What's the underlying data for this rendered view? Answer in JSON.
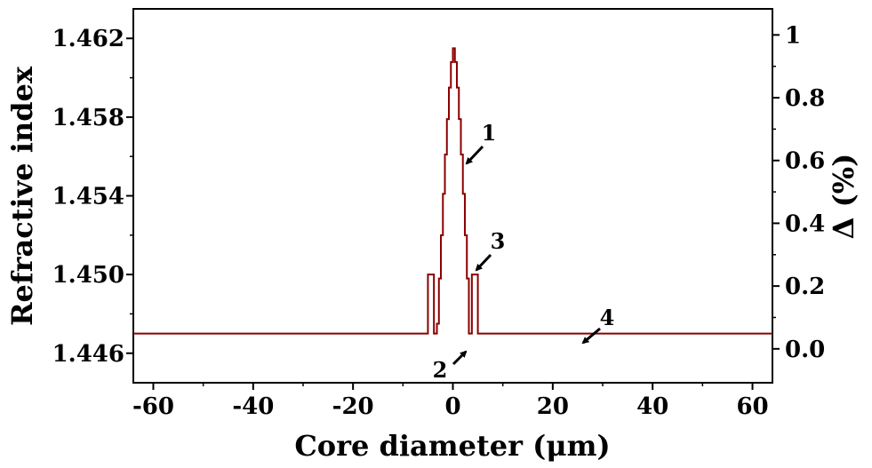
{
  "colors": {
    "profile": "#8b0000",
    "axis": "#000000",
    "background": "#ffffff"
  },
  "chart_data": {
    "type": "line",
    "title": "",
    "xlabel": "Core diameter (μm)",
    "ylabel_left": "Refractive index",
    "ylabel_right": "Δ (%)",
    "xlim": [
      -64,
      64
    ],
    "ylim_left": [
      1.4445,
      1.4635
    ],
    "ylim_right": [
      -0.108,
      1.083
    ],
    "x_ticks": [
      -60,
      -40,
      -20,
      0,
      20,
      40,
      60
    ],
    "x_tick_labels": [
      "-60",
      "-40",
      "-20",
      "0",
      "20",
      "40",
      "60"
    ],
    "y_left_ticks": [
      1.446,
      1.45,
      1.454,
      1.458,
      1.462
    ],
    "y_left_tick_labels": [
      "1.446",
      "1.450",
      "1.454",
      "1.458",
      "1.462"
    ],
    "y_right_ticks": [
      0.0,
      0.2,
      0.4,
      0.6,
      0.8,
      1.0
    ],
    "y_right_tick_labels": [
      "0.0",
      "0.2",
      "0.4",
      "0.6",
      "0.8",
      "1"
    ],
    "grid": false,
    "legend": "none",
    "series": [
      {
        "x": [
          -64,
          -5.0,
          -5.0,
          -3.8,
          -3.8,
          -3.2,
          -3.2,
          -2.8,
          -2.4,
          -2.0,
          -1.6,
          -1.2,
          -0.8,
          -0.4,
          0.0,
          0.4,
          0.8,
          1.2,
          1.6,
          2.0,
          2.4,
          2.8,
          3.2,
          3.2,
          3.8,
          3.8,
          5.0,
          5.0,
          64
        ],
        "y": [
          1.447,
          1.447,
          1.45,
          1.45,
          1.447,
          1.447,
          1.4475,
          1.4498,
          1.452,
          1.4541,
          1.4561,
          1.4579,
          1.4595,
          1.4608,
          1.4615,
          1.4608,
          1.4595,
          1.4579,
          1.4561,
          1.4541,
          1.452,
          1.4498,
          1.4475,
          1.447,
          1.447,
          1.45,
          1.45,
          1.447,
          1.447
        ]
      }
    ],
    "annotations": [
      {
        "text": "1",
        "x": 2.5,
        "y": 1.4582
      },
      {
        "text": "2",
        "x": 3.2,
        "y": 1.4465
      },
      {
        "text": "3",
        "x": 4.0,
        "y": 1.4506
      },
      {
        "text": "4",
        "x": 25.0,
        "y": 1.4473
      }
    ]
  }
}
